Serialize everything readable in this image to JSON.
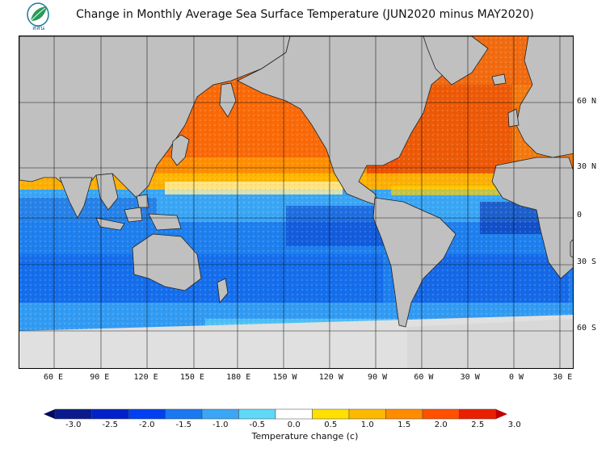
{
  "title": "Change in Monthly Average Sea Surface Temperature (JUN2020 minus MAY2020)",
  "logo": {
    "text": "สสน",
    "icon": "leaf-logo-icon"
  },
  "map": {
    "lat_labels": [
      {
        "lat": 60,
        "label": "60 N"
      },
      {
        "lat": 30,
        "label": "30 N"
      },
      {
        "lat": 0,
        "label": "0"
      },
      {
        "lat": -30,
        "label": "30 S"
      },
      {
        "lat": -60,
        "label": "60 S"
      }
    ],
    "lon_labels": [
      {
        "lon": 60,
        "label": "60 E"
      },
      {
        "lon": 90,
        "label": "90 E"
      },
      {
        "lon": 120,
        "label": "120 E"
      },
      {
        "lon": 150,
        "label": "150 E"
      },
      {
        "lon": 180,
        "label": "180 E"
      },
      {
        "lon": 210,
        "label": "150 W"
      },
      {
        "lon": 240,
        "label": "120 W"
      },
      {
        "lon": 270,
        "label": "90 W"
      },
      {
        "lon": 300,
        "label": "60 W"
      },
      {
        "lon": 330,
        "label": "30 W"
      },
      {
        "lon": 360,
        "label": "0 W"
      },
      {
        "lon": 390,
        "label": "30 E"
      }
    ],
    "land_color": "#c0c0c0",
    "ice_color": "#e0e0e0"
  },
  "colorbar": {
    "label": "Temperature change  (c)",
    "ticks": [
      "-3.0",
      "-2.5",
      "-2.0",
      "-1.5",
      "-1.0",
      "-0.5",
      "0.0",
      "0.5",
      "1.0",
      "1.5",
      "2.0",
      "2.5",
      "3.0"
    ],
    "colors": [
      "#0a1a8c",
      "#0020c8",
      "#0040f0",
      "#1a78f0",
      "#3aa6f5",
      "#60d8f8",
      "#ffffff",
      "#ffe000",
      "#ffb800",
      "#ff8c00",
      "#ff5000",
      "#e82000"
    ],
    "low_color": "#000a60",
    "high_color": "#c00000"
  }
}
